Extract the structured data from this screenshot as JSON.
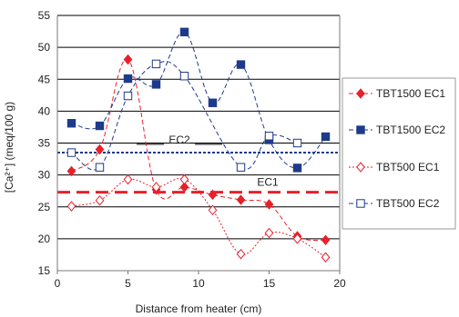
{
  "chart_data": {
    "type": "line",
    "xlabel": "Distance from heater (cm)",
    "ylabel": "[Ca²⁺] (meq/100 g)",
    "xlim": [
      0,
      20
    ],
    "ylim": [
      15,
      55
    ],
    "xticks": [
      "0",
      "5",
      "10",
      "15",
      "20"
    ],
    "yticks": [
      "15",
      "20",
      "25",
      "30",
      "35",
      "40",
      "45",
      "50",
      "55"
    ],
    "grid": "horizontal",
    "legend_position": "right",
    "series": [
      {
        "name": "TBT1500 EC1",
        "color": "#e8202a",
        "marker": "filled-diamond",
        "line": "dashed",
        "x": [
          1,
          3,
          5,
          7,
          9,
          11,
          13,
          15,
          17,
          19
        ],
        "y": [
          30.6,
          34.0,
          48.1,
          27.7,
          28.1,
          26.9,
          26.1,
          25.4,
          20.4,
          19.8
        ]
      },
      {
        "name": "TBT1500 EC2",
        "color": "#1f3a8a",
        "marker": "filled-square",
        "line": "dashed",
        "x": [
          1,
          3,
          5,
          7,
          9,
          11,
          13,
          15,
          17,
          19
        ],
        "y": [
          38.1,
          37.7,
          45.1,
          44.2,
          52.4,
          41.3,
          47.3,
          35.5,
          31.1,
          36.0
        ]
      },
      {
        "name": "TBT500 EC1",
        "color": "#e8202a",
        "marker": "open-diamond",
        "line": "dotted",
        "x": [
          1,
          3,
          5,
          7,
          9,
          11,
          13,
          15,
          17,
          19
        ],
        "y": [
          25.1,
          26.0,
          29.3,
          28.1,
          29.3,
          24.5,
          17.6,
          20.9,
          20.0,
          17.1
        ]
      },
      {
        "name": "TBT500 EC2",
        "color": "#1f3a8a",
        "marker": "open-square",
        "line": "dashed",
        "x": [
          1,
          3,
          5,
          7,
          9,
          11,
          13,
          15,
          17,
          19
        ],
        "y": [
          33.5,
          31.2,
          42.4,
          47.4,
          45.5,
          null,
          31.2,
          36.1,
          35.0,
          null
        ]
      }
    ],
    "reference_lines": [
      {
        "label": "EC2",
        "y": 33.5,
        "color": "#1f3a8a",
        "style": "dotted"
      },
      {
        "label": "EC1",
        "y": 27.3,
        "color": "#e8202a",
        "style": "long-dash"
      }
    ]
  }
}
